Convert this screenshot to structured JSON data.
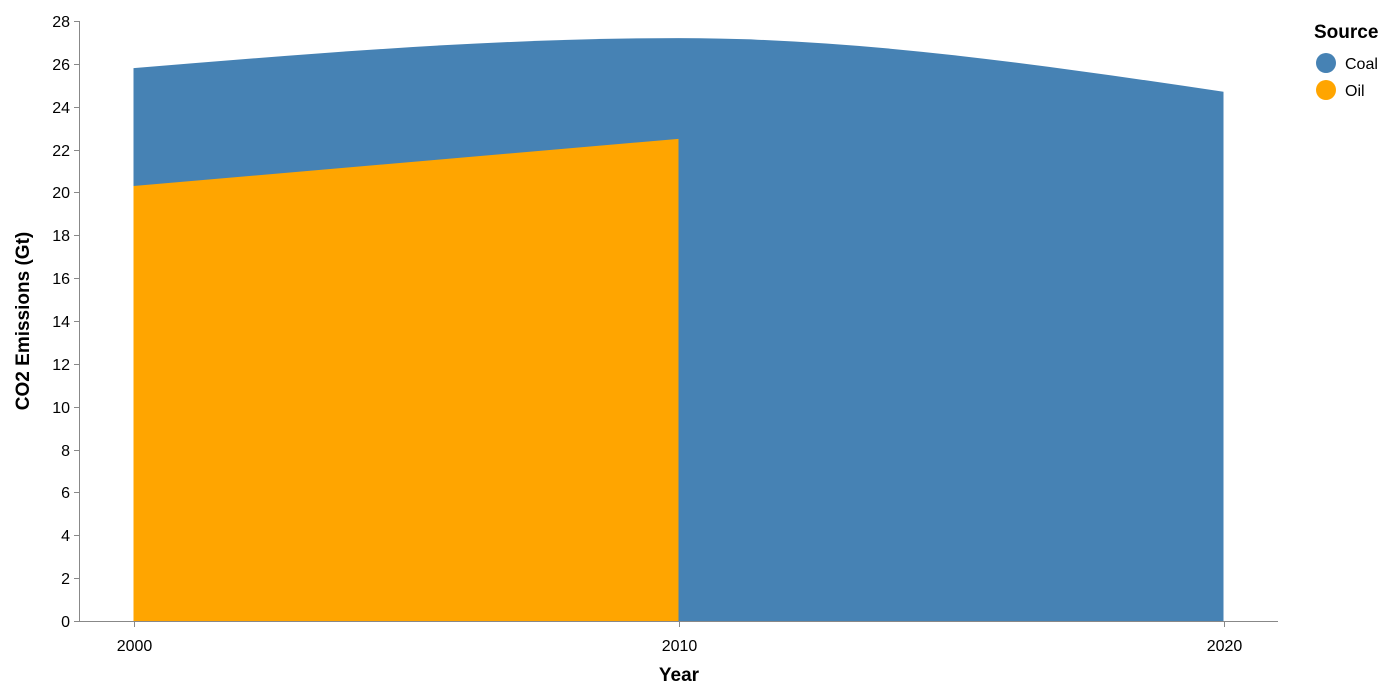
{
  "chart_data": {
    "type": "area",
    "xlabel": "Year",
    "ylabel": "CO2 Emissions (Gt)",
    "x_ticks": [
      "2000",
      "2010",
      "2020"
    ],
    "y_ticks": [
      "0",
      "2",
      "4",
      "6",
      "8",
      "10",
      "12",
      "14",
      "16",
      "18",
      "20",
      "22",
      "24",
      "26",
      "28"
    ],
    "xlim": [
      1999,
      2021
    ],
    "ylim": [
      0,
      28
    ],
    "interpolation": "monotone",
    "grid": false,
    "legend": {
      "title": "Source",
      "position": "top-right",
      "entries": [
        {
          "label": "Coal",
          "color": "#4682b4"
        },
        {
          "label": "Oil",
          "color": "#ffa500"
        }
      ]
    },
    "series": [
      {
        "name": "Coal",
        "color": "#4682b4",
        "x": [
          2000,
          2010,
          2020
        ],
        "values": [
          25.8,
          27.2,
          24.7
        ]
      },
      {
        "name": "Oil",
        "color": "#ffa500",
        "x": [
          2000,
          2010
        ],
        "values": [
          20.3,
          22.5
        ]
      }
    ]
  }
}
